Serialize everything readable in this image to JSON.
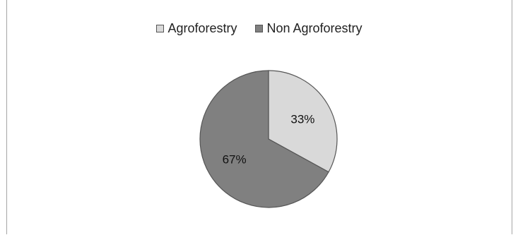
{
  "chart_data": {
    "type": "pie",
    "categories": [
      "Agroforestry",
      "Non Agroforestry"
    ],
    "values": [
      33,
      67
    ],
    "labels": [
      "33%",
      "67%"
    ],
    "colors": [
      "#d9d9d9",
      "#808080"
    ],
    "legend_position": "top"
  }
}
